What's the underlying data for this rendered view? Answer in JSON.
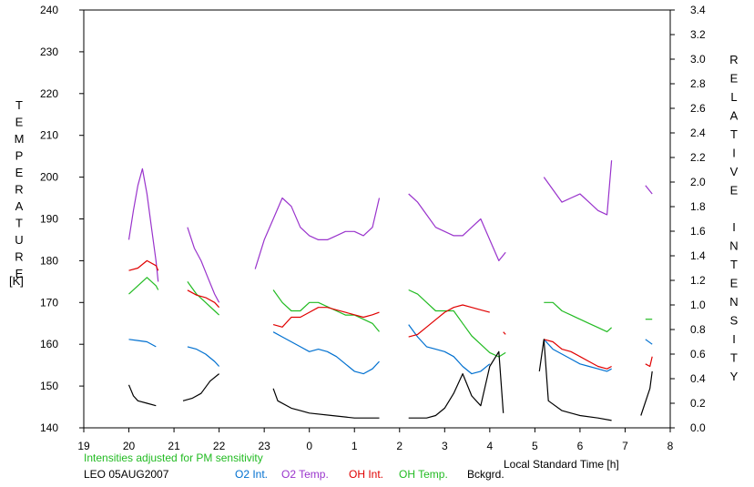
{
  "chart_data": {
    "type": "line",
    "title": "",
    "left_axis_label": "TEMPERATURE",
    "left_axis_unit": "[K]",
    "right_axis_label": "RELATIVE INTENSITY",
    "xlabel": "Local Standard Time [h]",
    "note": "Intensities adjusted for PM sensitivity",
    "station": "LEO 05AUG2007",
    "x_ticks": [
      "19",
      "20",
      "21",
      "22",
      "23",
      "0",
      "1",
      "2",
      "3",
      "4",
      "5",
      "6",
      "7",
      "8"
    ],
    "xlim": [
      19,
      32
    ],
    "ylim_left": [
      140,
      240
    ],
    "ylim_right": [
      0.0,
      3.4
    ],
    "y_ticks_left": [
      140,
      150,
      160,
      170,
      180,
      190,
      200,
      210,
      220,
      230,
      240
    ],
    "y_ticks_right": [
      "0.0",
      "0.2",
      "0.4",
      "0.6",
      "0.8",
      "1.0",
      "1.2",
      "1.4",
      "1.6",
      "1.8",
      "2.0",
      "2.2",
      "2.4",
      "2.6",
      "2.8",
      "3.0",
      "3.2",
      "3.4"
    ],
    "colors": {
      "O2 Int.": "#0070d0",
      "O2 Temp.": "#9933cc",
      "OH Int.": "#e00000",
      "OH Temp.": "#22bb22",
      "Bckgrd.": "#000000",
      "note": "#22bb22"
    },
    "legend": [
      "O2 Int.",
      "O2 Temp.",
      "OH Int.",
      "OH Temp.",
      "Bckgrd."
    ],
    "series": [
      {
        "name": "O2 Temp.",
        "axis": "left",
        "segments": [
          [
            [
              20.0,
              185
            ],
            [
              20.1,
              192
            ],
            [
              20.2,
              198
            ],
            [
              20.3,
              202
            ],
            [
              20.4,
              196
            ],
            [
              20.5,
              188
            ],
            [
              20.6,
              180
            ],
            [
              20.65,
              175
            ]
          ],
          [
            [
              21.3,
              188
            ],
            [
              21.45,
              183
            ],
            [
              21.6,
              180
            ],
            [
              21.75,
              176
            ],
            [
              21.9,
              172
            ],
            [
              22.0,
              170
            ]
          ],
          [
            [
              22.8,
              178
            ],
            [
              23.0,
              185
            ],
            [
              23.2,
              190
            ],
            [
              23.4,
              195
            ],
            [
              23.6,
              193
            ],
            [
              23.8,
              188
            ],
            [
              24.0,
              186
            ],
            [
              24.2,
              185
            ],
            [
              24.4,
              185
            ],
            [
              24.6,
              186
            ],
            [
              24.8,
              187
            ],
            [
              25.0,
              187
            ],
            [
              25.2,
              186
            ],
            [
              25.4,
              188
            ],
            [
              25.55,
              195
            ]
          ],
          [
            [
              26.2,
              196
            ],
            [
              26.4,
              194
            ],
            [
              26.6,
              191
            ],
            [
              26.8,
              188
            ],
            [
              27.0,
              187
            ],
            [
              27.2,
              186
            ],
            [
              27.4,
              186
            ],
            [
              27.6,
              188
            ],
            [
              27.8,
              190
            ],
            [
              28.0,
              185
            ],
            [
              28.2,
              180
            ],
            [
              28.35,
              182
            ]
          ],
          [
            [
              29.2,
              200
            ],
            [
              29.4,
              197
            ],
            [
              29.6,
              194
            ],
            [
              29.8,
              195
            ],
            [
              30.0,
              196
            ],
            [
              30.2,
              194
            ],
            [
              30.4,
              192
            ],
            [
              30.6,
              191
            ],
            [
              30.7,
              204
            ]
          ],
          [
            [
              31.45,
              198
            ],
            [
              31.6,
              196
            ]
          ]
        ]
      },
      {
        "name": "OH Temp.",
        "axis": "left",
        "segments": [
          [
            [
              20.0,
              172
            ],
            [
              20.2,
              174
            ],
            [
              20.4,
              176
            ],
            [
              20.6,
              174
            ],
            [
              20.65,
              173
            ]
          ],
          [
            [
              21.3,
              175
            ],
            [
              21.5,
              172
            ],
            [
              21.7,
              170
            ],
            [
              21.9,
              168
            ],
            [
              22.0,
              167
            ]
          ],
          [
            [
              23.2,
              173
            ],
            [
              23.4,
              170
            ],
            [
              23.6,
              168
            ],
            [
              23.8,
              168
            ],
            [
              24.0,
              170
            ],
            [
              24.2,
              170
            ],
            [
              24.4,
              169
            ],
            [
              24.6,
              168
            ],
            [
              24.8,
              167
            ],
            [
              25.0,
              167
            ],
            [
              25.2,
              166
            ],
            [
              25.4,
              165
            ],
            [
              25.55,
              163
            ]
          ],
          [
            [
              26.2,
              173
            ],
            [
              26.4,
              172
            ],
            [
              26.6,
              170
            ],
            [
              26.8,
              168
            ],
            [
              27.0,
              168
            ],
            [
              27.2,
              168
            ],
            [
              27.4,
              165
            ],
            [
              27.6,
              162
            ],
            [
              27.8,
              160
            ],
            [
              28.0,
              158
            ],
            [
              28.2,
              157
            ],
            [
              28.35,
              158
            ]
          ],
          [
            [
              29.2,
              170
            ],
            [
              29.4,
              170
            ],
            [
              29.6,
              168
            ],
            [
              29.8,
              167
            ],
            [
              30.0,
              166
            ],
            [
              30.2,
              165
            ],
            [
              30.4,
              164
            ],
            [
              30.6,
              163
            ],
            [
              30.7,
              164
            ]
          ],
          [
            [
              31.45,
              166
            ],
            [
              31.6,
              166
            ]
          ]
        ]
      },
      {
        "name": "O2 Int.",
        "axis": "right",
        "segments": [
          [
            [
              20.0,
              0.72
            ],
            [
              20.2,
              0.71
            ],
            [
              20.4,
              0.7
            ],
            [
              20.6,
              0.66
            ]
          ],
          [
            [
              21.3,
              0.66
            ],
            [
              21.5,
              0.64
            ],
            [
              21.7,
              0.6
            ],
            [
              21.9,
              0.54
            ],
            [
              22.0,
              0.5
            ]
          ],
          [
            [
              23.2,
              0.78
            ],
            [
              23.4,
              0.74
            ],
            [
              23.6,
              0.7
            ],
            [
              23.8,
              0.66
            ],
            [
              24.0,
              0.62
            ],
            [
              24.2,
              0.64
            ],
            [
              24.4,
              0.62
            ],
            [
              24.6,
              0.58
            ],
            [
              24.8,
              0.52
            ],
            [
              25.0,
              0.46
            ],
            [
              25.2,
              0.44
            ],
            [
              25.4,
              0.48
            ],
            [
              25.55,
              0.54
            ]
          ],
          [
            [
              26.2,
              0.84
            ],
            [
              26.4,
              0.74
            ],
            [
              26.6,
              0.66
            ],
            [
              26.8,
              0.64
            ],
            [
              27.0,
              0.62
            ],
            [
              27.2,
              0.58
            ],
            [
              27.4,
              0.5
            ],
            [
              27.6,
              0.44
            ],
            [
              27.8,
              0.46
            ],
            [
              28.0,
              0.52
            ]
          ],
          [
            [
              29.2,
              0.72
            ],
            [
              29.4,
              0.64
            ],
            [
              29.6,
              0.6
            ],
            [
              29.8,
              0.56
            ],
            [
              30.0,
              0.52
            ],
            [
              30.2,
              0.5
            ],
            [
              30.4,
              0.48
            ],
            [
              30.6,
              0.46
            ],
            [
              30.7,
              0.48
            ]
          ],
          [
            [
              31.45,
              0.72
            ],
            [
              31.6,
              0.68
            ]
          ]
        ]
      },
      {
        "name": "OH Int.",
        "axis": "right",
        "segments": [
          [
            [
              20.0,
              1.28
            ],
            [
              20.2,
              1.3
            ],
            [
              20.4,
              1.36
            ],
            [
              20.6,
              1.32
            ],
            [
              20.65,
              1.28
            ]
          ],
          [
            [
              21.3,
              1.12
            ],
            [
              21.5,
              1.08
            ],
            [
              21.7,
              1.06
            ],
            [
              21.9,
              1.02
            ],
            [
              22.0,
              0.98
            ]
          ],
          [
            [
              23.2,
              0.84
            ],
            [
              23.4,
              0.82
            ],
            [
              23.6,
              0.9
            ],
            [
              23.8,
              0.9
            ],
            [
              24.0,
              0.94
            ],
            [
              24.2,
              0.98
            ],
            [
              24.4,
              0.98
            ],
            [
              24.6,
              0.96
            ],
            [
              24.8,
              0.94
            ],
            [
              25.0,
              0.92
            ],
            [
              25.2,
              0.9
            ],
            [
              25.4,
              0.92
            ],
            [
              25.55,
              0.94
            ]
          ],
          [
            [
              26.2,
              0.74
            ],
            [
              26.4,
              0.76
            ],
            [
              26.6,
              0.82
            ],
            [
              26.8,
              0.88
            ],
            [
              27.0,
              0.94
            ],
            [
              27.2,
              0.98
            ],
            [
              27.4,
              1.0
            ],
            [
              27.6,
              0.98
            ],
            [
              27.8,
              0.96
            ],
            [
              28.0,
              0.94
            ]
          ],
          [
            [
              28.3,
              0.78
            ],
            [
              28.35,
              0.76
            ]
          ],
          [
            [
              29.2,
              0.72
            ],
            [
              29.4,
              0.7
            ],
            [
              29.6,
              0.64
            ],
            [
              29.8,
              0.62
            ],
            [
              30.0,
              0.58
            ],
            [
              30.2,
              0.54
            ],
            [
              30.4,
              0.5
            ],
            [
              30.6,
              0.48
            ],
            [
              30.7,
              0.5
            ]
          ],
          [
            [
              31.45,
              0.52
            ],
            [
              31.55,
              0.5
            ],
            [
              31.6,
              0.58
            ]
          ]
        ]
      },
      {
        "name": "Bckgrd.",
        "axis": "right",
        "segments": [
          [
            [
              20.0,
              0.35
            ],
            [
              20.1,
              0.26
            ],
            [
              20.2,
              0.22
            ],
            [
              20.4,
              0.2
            ],
            [
              20.6,
              0.18
            ]
          ],
          [
            [
              21.2,
              0.22
            ],
            [
              21.4,
              0.24
            ],
            [
              21.6,
              0.28
            ],
            [
              21.8,
              0.38
            ],
            [
              22.0,
              0.44
            ]
          ],
          [
            [
              23.2,
              0.32
            ],
            [
              23.3,
              0.22
            ],
            [
              23.6,
              0.16
            ],
            [
              23.8,
              0.14
            ],
            [
              24.0,
              0.12
            ],
            [
              24.5,
              0.1
            ],
            [
              25.0,
              0.08
            ],
            [
              25.3,
              0.08
            ],
            [
              25.55,
              0.08
            ]
          ],
          [
            [
              26.2,
              0.08
            ],
            [
              26.6,
              0.08
            ],
            [
              26.8,
              0.1
            ],
            [
              27.0,
              0.16
            ],
            [
              27.2,
              0.28
            ],
            [
              27.4,
              0.44
            ],
            [
              27.6,
              0.26
            ],
            [
              27.8,
              0.18
            ],
            [
              28.0,
              0.5
            ],
            [
              28.2,
              0.62
            ],
            [
              28.3,
              0.12
            ]
          ],
          [
            [
              29.1,
              0.46
            ],
            [
              29.2,
              0.72
            ],
            [
              29.3,
              0.22
            ],
            [
              29.6,
              0.14
            ],
            [
              29.8,
              0.12
            ],
            [
              30.0,
              0.1
            ],
            [
              30.4,
              0.08
            ],
            [
              30.7,
              0.06
            ]
          ],
          [
            [
              31.35,
              0.1
            ],
            [
              31.55,
              0.32
            ],
            [
              31.6,
              0.46
            ]
          ]
        ]
      }
    ]
  }
}
